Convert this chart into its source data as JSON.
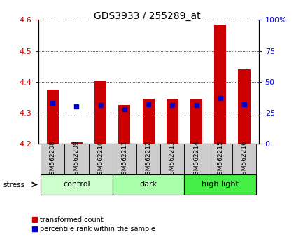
{
  "title": "GDS3933 / 255289_at",
  "samples": [
    "GSM562208",
    "GSM562209",
    "GSM562210",
    "GSM562211",
    "GSM562212",
    "GSM562213",
    "GSM562214",
    "GSM562215",
    "GSM562216"
  ],
  "red_values": [
    4.375,
    4.205,
    4.405,
    4.325,
    4.345,
    4.345,
    4.345,
    4.585,
    4.44
  ],
  "blue_values_pct": [
    33,
    30,
    31,
    28,
    32,
    31,
    31,
    37,
    32
  ],
  "ylim": [
    4.2,
    4.6
  ],
  "y2lim": [
    0,
    100
  ],
  "yticks": [
    4.2,
    4.3,
    4.4,
    4.5,
    4.6
  ],
  "y2ticks": [
    0,
    25,
    50,
    75,
    100
  ],
  "groups": [
    {
      "label": "control",
      "indices": [
        0,
        1,
        2
      ],
      "color": "#ccffcc"
    },
    {
      "label": "dark",
      "indices": [
        3,
        4,
        5
      ],
      "color": "#aaffaa"
    },
    {
      "label": "high light",
      "indices": [
        6,
        7,
        8
      ],
      "color": "#44ee44"
    }
  ],
  "bar_color": "#cc0000",
  "blue_color": "#0000cc",
  "grid_color": "#000000",
  "bg_color": "#ffffff",
  "ylabel_color_red": "#cc0000",
  "ylabel_color_blue": "#0000cc",
  "bar_width": 0.5,
  "base_value": 4.2,
  "figsize": [
    4.2,
    3.54
  ],
  "dpi": 100
}
